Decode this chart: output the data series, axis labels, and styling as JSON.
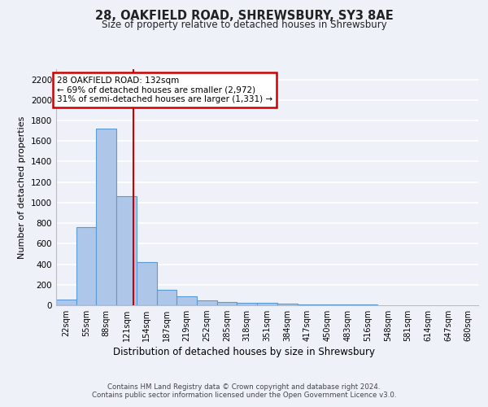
{
  "title_line1": "28, OAKFIELD ROAD, SHREWSBURY, SY3 8AE",
  "title_line2": "Size of property relative to detached houses in Shrewsbury",
  "xlabel": "Distribution of detached houses by size in Shrewsbury",
  "ylabel": "Number of detached properties",
  "footer_line1": "Contains HM Land Registry data © Crown copyright and database right 2024.",
  "footer_line2": "Contains public sector information licensed under the Open Government Licence v3.0.",
  "bin_labels": [
    "22sqm",
    "55sqm",
    "88sqm",
    "121sqm",
    "154sqm",
    "187sqm",
    "219sqm",
    "252sqm",
    "285sqm",
    "318sqm",
    "351sqm",
    "384sqm",
    "417sqm",
    "450sqm",
    "483sqm",
    "516sqm",
    "548sqm",
    "581sqm",
    "614sqm",
    "647sqm",
    "680sqm"
  ],
  "bar_values": [
    55,
    765,
    1720,
    1060,
    420,
    150,
    85,
    45,
    35,
    25,
    20,
    15,
    10,
    5,
    5,
    5,
    3,
    3,
    2,
    2,
    0
  ],
  "bar_color": "#aec6e8",
  "bar_edgecolor": "#5b9bd5",
  "property_label": "28 OAKFIELD ROAD: 132sqm",
  "annotation_line2": "← 69% of detached houses are smaller (2,972)",
  "annotation_line3": "31% of semi-detached houses are larger (1,331) →",
  "annotation_box_edgecolor": "#cc0000",
  "redline_color": "#cc0000",
  "redline_x": 132,
  "ylim": [
    0,
    2300
  ],
  "yticks": [
    0,
    200,
    400,
    600,
    800,
    1000,
    1200,
    1400,
    1600,
    1800,
    2000,
    2200
  ],
  "bg_color": "#eef2f8",
  "grid_color": "#ffffff",
  "bin_width": 33
}
